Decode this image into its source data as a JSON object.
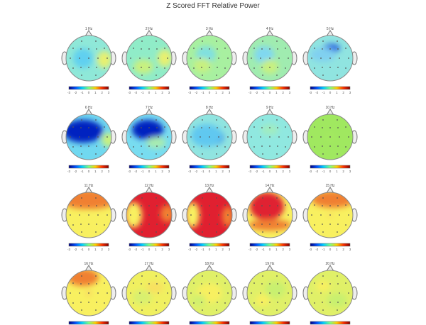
{
  "chart_data": {
    "type": "heatmap",
    "title": "Z Scored FFT Relative Power",
    "colorbar_ticks": [
      "-3",
      "-2",
      "-1",
      "0",
      "1",
      "2",
      "3"
    ],
    "colorbar_range": [
      -3,
      3
    ],
    "colorscale": [
      "#00007f",
      "#0050ff",
      "#00d0ff",
      "#7fff7f",
      "#ffd000",
      "#ff3000",
      "#7f0000"
    ],
    "maps": [
      {
        "label": "1 Hz",
        "base": "#8fe8d8",
        "blobs": [
          "#60d0f0",
          "#e8f070"
        ]
      },
      {
        "label": "2 Hz",
        "base": "#90ecc8",
        "blobs": [
          "#c8f080",
          "#e8f070"
        ]
      },
      {
        "label": "3 Hz",
        "base": "#a8f0a0",
        "blobs": [
          "#80e0e0",
          "#c8f080"
        ]
      },
      {
        "label": "4 Hz",
        "base": "#a0ecb0",
        "blobs": [
          "#80d8f0",
          "#c8f080"
        ]
      },
      {
        "label": "5 Hz",
        "base": "#90e4e0",
        "blobs": [
          "#2060e0",
          "#80d0f0"
        ]
      },
      {
        "label": "6 Hz",
        "base": "#70d8f0",
        "blobs": [
          "#0020c0",
          "#c8f080"
        ]
      },
      {
        "label": "7 Hz",
        "base": "#78dcf0",
        "blobs": [
          "#0020c0",
          "#a8ecb0"
        ]
      },
      {
        "label": "8 Hz",
        "base": "#90e4e0",
        "blobs": [
          "#2070e8",
          "#60c8f0"
        ]
      },
      {
        "label": "9 Hz",
        "base": "#90e8e0",
        "blobs": [
          "#a0ecc0",
          "#90e8e0"
        ]
      },
      {
        "label": "10 Hz",
        "base": "#a0e860",
        "blobs": [
          "#a8ec60",
          "#a0e860"
        ]
      },
      {
        "label": "11 Hz",
        "base": "#f8f060",
        "blobs": [
          "#f08030",
          "#f8f060"
        ]
      },
      {
        "label": "12 Hz",
        "base": "#e02030",
        "blobs": [
          "#f8f060",
          "#f08030"
        ]
      },
      {
        "label": "13 Hz",
        "base": "#e02030",
        "blobs": [
          "#f8f060",
          "#f08030"
        ]
      },
      {
        "label": "14 Hz",
        "base": "#f8f060",
        "blobs": [
          "#e02030",
          "#f08030"
        ]
      },
      {
        "label": "15 Hz",
        "base": "#f8f060",
        "blobs": [
          "#f08030",
          "#f8e060"
        ]
      },
      {
        "label": "16 Hz",
        "base": "#f8f060",
        "blobs": [
          "#f08030",
          "#f8d060"
        ]
      },
      {
        "label": "17 Hz",
        "base": "#f0f060",
        "blobs": [
          "#d8f070",
          "#f8e060"
        ]
      },
      {
        "label": "18 Hz",
        "base": "#e0f068",
        "blobs": [
          "#f8f060",
          "#d0f070"
        ]
      },
      {
        "label": "19 Hz",
        "base": "#e0f068",
        "blobs": [
          "#c8f070",
          "#f8f060"
        ]
      },
      {
        "label": "20 Hz",
        "base": "#e0f068",
        "blobs": [
          "#c8f070",
          "#f8f060"
        ]
      }
    ]
  }
}
